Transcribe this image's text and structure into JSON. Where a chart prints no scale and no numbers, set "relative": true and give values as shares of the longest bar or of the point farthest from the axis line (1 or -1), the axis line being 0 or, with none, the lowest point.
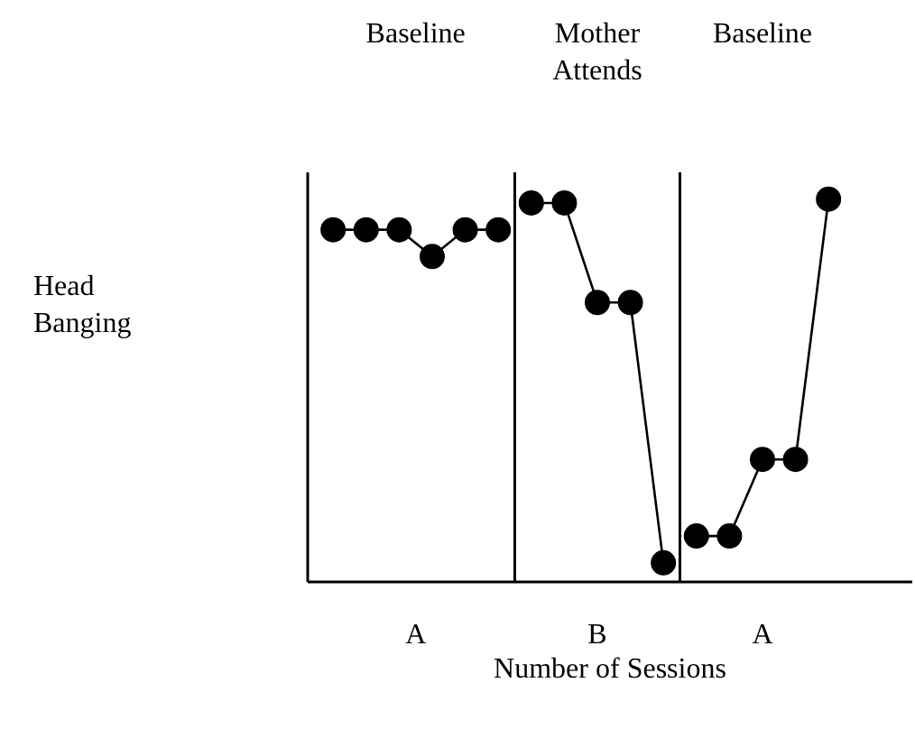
{
  "chart_data": {
    "type": "line",
    "relative": true,
    "marker": "circle",
    "line_style": "solid",
    "xlabel": "Number of Sessions",
    "categories": [
      null,
      null,
      null,
      null,
      null,
      null,
      null,
      null,
      null,
      null,
      null,
      null,
      null,
      null,
      null,
      null
    ],
    "series": [
      {
        "color": "#000000",
        "values": [
          0.92,
          0.92,
          0.92,
          0.85,
          0.92,
          0.92,
          null,
          null,
          null,
          null,
          null,
          null,
          null,
          null,
          null,
          null
        ]
      },
      {
        "color": "#000000",
        "values": [
          null,
          null,
          null,
          null,
          null,
          null,
          0.99,
          0.99,
          0.73,
          0.73,
          0.05,
          null,
          null,
          null,
          null,
          null
        ]
      },
      {
        "color": "#000000",
        "values": [
          null,
          null,
          null,
          null,
          null,
          null,
          null,
          null,
          null,
          null,
          null,
          0.12,
          0.12,
          0.32,
          0.32,
          1.0
        ]
      }
    ],
    "annotations": [
      "Baseline",
      "Mother Attends",
      "Baseline",
      "A",
      "B",
      "A",
      "Head Banging"
    ],
    "grid": false
  }
}
